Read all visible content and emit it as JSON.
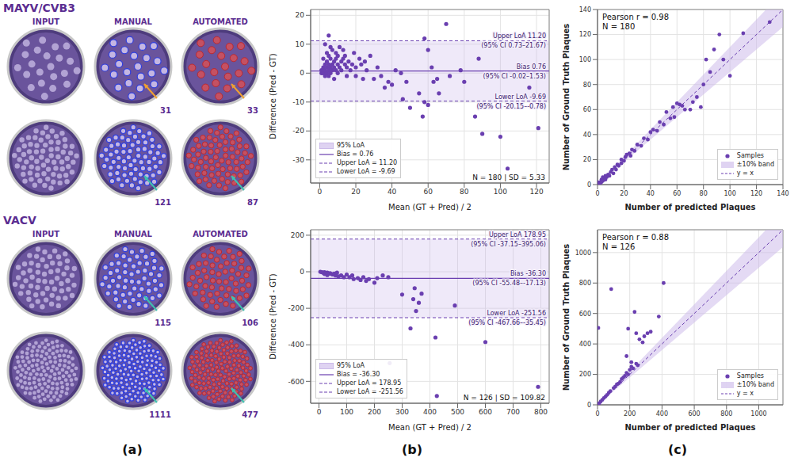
{
  "panel_labels": [
    "(a)",
    "(b)",
    "(c)"
  ],
  "image_panel": {
    "columns": [
      "INPUT",
      "MANUAL",
      "AUTOMATED"
    ],
    "groups": [
      {
        "title": "MAYV/CVB3",
        "rows": [
          {
            "manual": 31,
            "automated": 33
          },
          {
            "manual": 121,
            "automated": 87
          }
        ]
      },
      {
        "title": "VACV",
        "rows": [
          {
            "manual": 115,
            "automated": 106
          },
          {
            "manual": 1111,
            "automated": 477
          }
        ]
      }
    ]
  },
  "chart_data": [
    {
      "type": "bland-altman",
      "x_label": "Mean (GT + Pred) / 2",
      "y_label": "Difference (Pred - GT)",
      "xlim": [
        -5,
        127
      ],
      "ylim": [
        -38,
        22
      ],
      "xticks": [
        0,
        20,
        40,
        60,
        80,
        100,
        120
      ],
      "yticks": [
        -30,
        -20,
        -10,
        0,
        10,
        20
      ],
      "grid": true,
      "legend": "lower left",
      "color": "#6a3fb0",
      "x": [
        1,
        1,
        2,
        2,
        2,
        3,
        3,
        3,
        3,
        4,
        4,
        4,
        5,
        5,
        5,
        5,
        6,
        6,
        6,
        7,
        7,
        7,
        8,
        8,
        8,
        9,
        9,
        9,
        10,
        10,
        10,
        11,
        11,
        12,
        12,
        13,
        13,
        14,
        14,
        15,
        15,
        16,
        17,
        18,
        19,
        20,
        20,
        22,
        23,
        24,
        25,
        26,
        28,
        30,
        32,
        34,
        5,
        36,
        38,
        40,
        42,
        45,
        46,
        48,
        50,
        55,
        58,
        57,
        58,
        60,
        60,
        62,
        63,
        65,
        66,
        70,
        72,
        78,
        80,
        90,
        86,
        88,
        100,
        104,
        116,
        121,
        2,
        4,
        6,
        3
      ],
      "values": [
        0,
        1,
        0,
        1,
        2,
        0,
        1,
        -1,
        3,
        2,
        4,
        0,
        1,
        3,
        6,
        -1,
        2,
        5,
        0,
        1,
        3,
        8,
        2,
        4,
        -2,
        1,
        5,
        7,
        3,
        0,
        6,
        2,
        9,
        4,
        1,
        5,
        8,
        3,
        6,
        2,
        -1,
        4,
        1,
        3,
        7,
        2,
        -1,
        5,
        3,
        -2,
        4,
        1,
        6,
        -2,
        2,
        -1,
        13,
        -5,
        -3,
        -4,
        1,
        0,
        -9,
        -3,
        -12,
        -7,
        12,
        -15,
        -10,
        -11,
        8,
        2,
        -3,
        -2,
        -7,
        17,
        -1,
        1,
        -3,
        -21,
        -15,
        5,
        -22,
        -33,
        -5,
        -19,
        5,
        7,
        9,
        10
      ],
      "bias": 0.76,
      "upper_loa": 11.2,
      "lower_loa": -9.69,
      "annotations": {
        "upper": [
          "Upper LoA 11.20",
          "(95% CI 0.73–21.67)"
        ],
        "bias": [
          "Bias 0.76",
          "(95% CI -0.02–1.53)"
        ],
        "lower": [
          "Lower LoA -9.69",
          "(95% CI -20.15–-0.78)"
        ]
      },
      "legend_labels": [
        "95% LoA",
        "Bias = 0.76",
        "Upper LoA = 11.20",
        "Lower LoA = -9.69"
      ],
      "stats_text": [
        "N = 180 | SD = 5.33"
      ]
    },
    {
      "type": "scatter",
      "x_label": "Number of predicted Plaques",
      "y_label": "Number of Ground Truth Plaques",
      "xlim": [
        0,
        140
      ],
      "ylim": [
        0,
        140
      ],
      "xticks": [
        0,
        20,
        40,
        60,
        80,
        100,
        120,
        140
      ],
      "yticks": [
        0,
        20,
        40,
        60,
        80,
        100,
        120,
        140
      ],
      "grid": true,
      "legend": "lower right",
      "color": "#6a3fb0",
      "band_percent": 10,
      "x": [
        2,
        3,
        3,
        4,
        5,
        5,
        6,
        7,
        8,
        9,
        10,
        11,
        12,
        13,
        14,
        15,
        16,
        18,
        18,
        20,
        21,
        22,
        24,
        25,
        26,
        28,
        30,
        33,
        35,
        38,
        40,
        42,
        45,
        47,
        50,
        52,
        55,
        57,
        58,
        60,
        62,
        64,
        66,
        70,
        72,
        75,
        78,
        80,
        82,
        85,
        88,
        92,
        95,
        100,
        110,
        130,
        1,
        2,
        0,
        4,
        6
      ],
      "values": [
        2,
        2,
        4,
        3,
        5,
        4,
        7,
        6,
        8,
        7,
        10,
        12,
        9,
        14,
        12,
        16,
        15,
        17,
        20,
        19,
        22,
        24,
        25,
        23,
        28,
        27,
        32,
        31,
        37,
        36,
        42,
        44,
        43,
        50,
        48,
        58,
        53,
        62,
        54,
        65,
        64,
        63,
        60,
        60,
        66,
        70,
        62,
        80,
        100,
        90,
        108,
        120,
        100,
        87,
        121,
        130,
        1,
        0,
        2,
        6,
        4
      ],
      "stats_text": [
        "Pearson r = 0.98",
        "N = 180"
      ],
      "legend_labels": [
        "Samples",
        "±10% band",
        "y = x"
      ]
    },
    {
      "type": "bland-altman",
      "x_label": "Mean (GT + Pred) / 2",
      "y_label": "Difference (Pred - GT)",
      "xlim": [
        -30,
        830
      ],
      "ylim": [
        -720,
        230
      ],
      "xticks": [
        0,
        100,
        200,
        300,
        400,
        500,
        600,
        700,
        800
      ],
      "yticks": [
        -600,
        -400,
        -200,
        0,
        200
      ],
      "grid": true,
      "legend": "lower left",
      "color": "#6a3fb0",
      "x": [
        5,
        10,
        15,
        20,
        25,
        30,
        35,
        40,
        45,
        50,
        55,
        60,
        65,
        70,
        80,
        90,
        100,
        110,
        120,
        125,
        140,
        150,
        160,
        170,
        180,
        200,
        250,
        255,
        300,
        330,
        340,
        345,
        350,
        360,
        370,
        420,
        425,
        490,
        600,
        790,
        210,
        230,
        20,
        30
      ],
      "values": [
        0,
        -2,
        -5,
        -3,
        -8,
        -5,
        -10,
        -8,
        -12,
        -15,
        -10,
        -20,
        -5,
        -25,
        -20,
        -30,
        -15,
        -30,
        -20,
        -40,
        -35,
        -45,
        -30,
        -50,
        -40,
        -60,
        -30,
        -500,
        -125,
        -310,
        -150,
        -90,
        -215,
        -170,
        -120,
        -360,
        -680,
        -185,
        -385,
        -630,
        -35,
        -20,
        -12,
        -18
      ],
      "bias": -36.3,
      "upper_loa": 178.95,
      "lower_loa": -251.56,
      "annotations": {
        "upper": [
          "Upper LoA 178.95",
          "(95% CI -37.15–395.06)"
        ],
        "bias": [
          "Bias -36.30",
          "(95% CI -55.48–-17.13)"
        ],
        "lower": [
          "Lower LoA -251.56",
          "(95% CI -467.66–-35.45)"
        ]
      },
      "legend_labels": [
        "95% LoA",
        "Bias = -36.30",
        "Upper LoA = 178.95",
        "Lower LoA = -251.56"
      ],
      "stats_text": [
        "N = 126 | SD = 109.82"
      ]
    },
    {
      "type": "scatter",
      "x_label": "Number of predicted Plaques",
      "y_label": "Number of Ground Truth Plaques",
      "xlim": [
        0,
        1150
      ],
      "ylim": [
        0,
        1150
      ],
      "xticks": [
        0,
        200,
        400,
        600,
        800,
        1000
      ],
      "yticks": [
        0,
        200,
        400,
        600,
        800,
        1000
      ],
      "grid": true,
      "legend": "lower right",
      "color": "#6a3fb0",
      "band_percent": 10,
      "x": [
        10,
        20,
        30,
        40,
        50,
        60,
        70,
        80,
        100,
        110,
        120,
        130,
        140,
        150,
        160,
        170,
        180,
        190,
        200,
        210,
        220,
        240,
        250,
        180,
        190,
        210,
        230,
        240,
        260,
        280,
        290,
        310,
        330,
        380,
        5,
        85,
        410
      ],
      "values": [
        10,
        22,
        33,
        45,
        55,
        66,
        80,
        90,
        110,
        120,
        135,
        140,
        150,
        170,
        180,
        190,
        210,
        200,
        230,
        250,
        240,
        270,
        260,
        320,
        500,
        280,
        610,
        470,
        430,
        410,
        450,
        470,
        480,
        580,
        505,
        760,
        800
      ],
      "stats_text": [
        "Pearson r = 0.88",
        "N = 126"
      ],
      "legend_labels": [
        "Samples",
        "±10% band",
        "y = x"
      ]
    }
  ]
}
